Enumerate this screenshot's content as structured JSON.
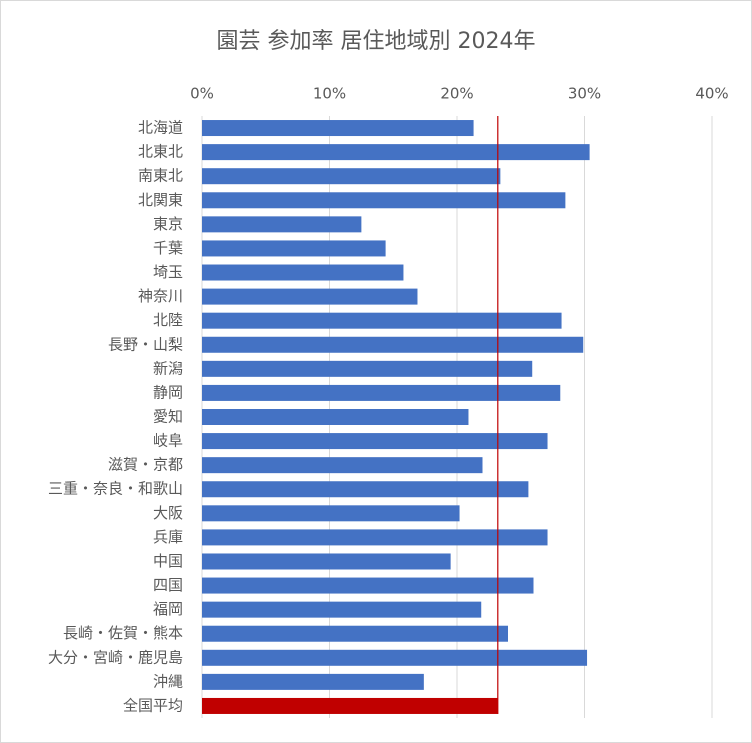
{
  "chart_data": {
    "type": "barh",
    "title": "園芸 参加率 居住地域別 2024年",
    "categories": [
      "北海道",
      "北東北",
      "南東北",
      "北関東",
      "東京",
      "千葉",
      "埼玉",
      "神奈川",
      "北陸",
      "長野・山梨",
      "新潟",
      "静岡",
      "愛知",
      "岐阜",
      "滋賀・京都",
      "三重・奈良・和歌山",
      "大阪",
      "兵庫",
      "中国",
      "四国",
      "福岡",
      "長崎・佐賀・熊本",
      "大分・宮崎・鹿児島",
      "沖縄",
      "全国平均"
    ],
    "values": [
      21.3,
      30.4,
      23.4,
      28.5,
      12.5,
      14.4,
      15.8,
      16.9,
      28.2,
      29.9,
      25.9,
      28.1,
      20.9,
      27.1,
      22.0,
      25.6,
      20.2,
      27.1,
      19.5,
      26.0,
      21.9,
      24.0,
      30.2,
      17.4,
      23.2
    ],
    "colors": [
      "#4472c4",
      "#4472c4",
      "#4472c4",
      "#4472c4",
      "#4472c4",
      "#4472c4",
      "#4472c4",
      "#4472c4",
      "#4472c4",
      "#4472c4",
      "#4472c4",
      "#4472c4",
      "#4472c4",
      "#4472c4",
      "#4472c4",
      "#4472c4",
      "#4472c4",
      "#4472c4",
      "#4472c4",
      "#4472c4",
      "#4472c4",
      "#4472c4",
      "#4472c4",
      "#4472c4",
      "#c00000"
    ],
    "reference_line": {
      "index": 24,
      "color": "#c00000"
    },
    "xlim": [
      0,
      40
    ],
    "xticks": [
      {
        "value": 0,
        "label": "0%"
      },
      {
        "value": 10,
        "label": "10%"
      },
      {
        "value": 20,
        "label": "20%"
      },
      {
        "value": 30,
        "label": "30%"
      },
      {
        "value": 40,
        "label": "40%"
      }
    ],
    "grid": true
  }
}
